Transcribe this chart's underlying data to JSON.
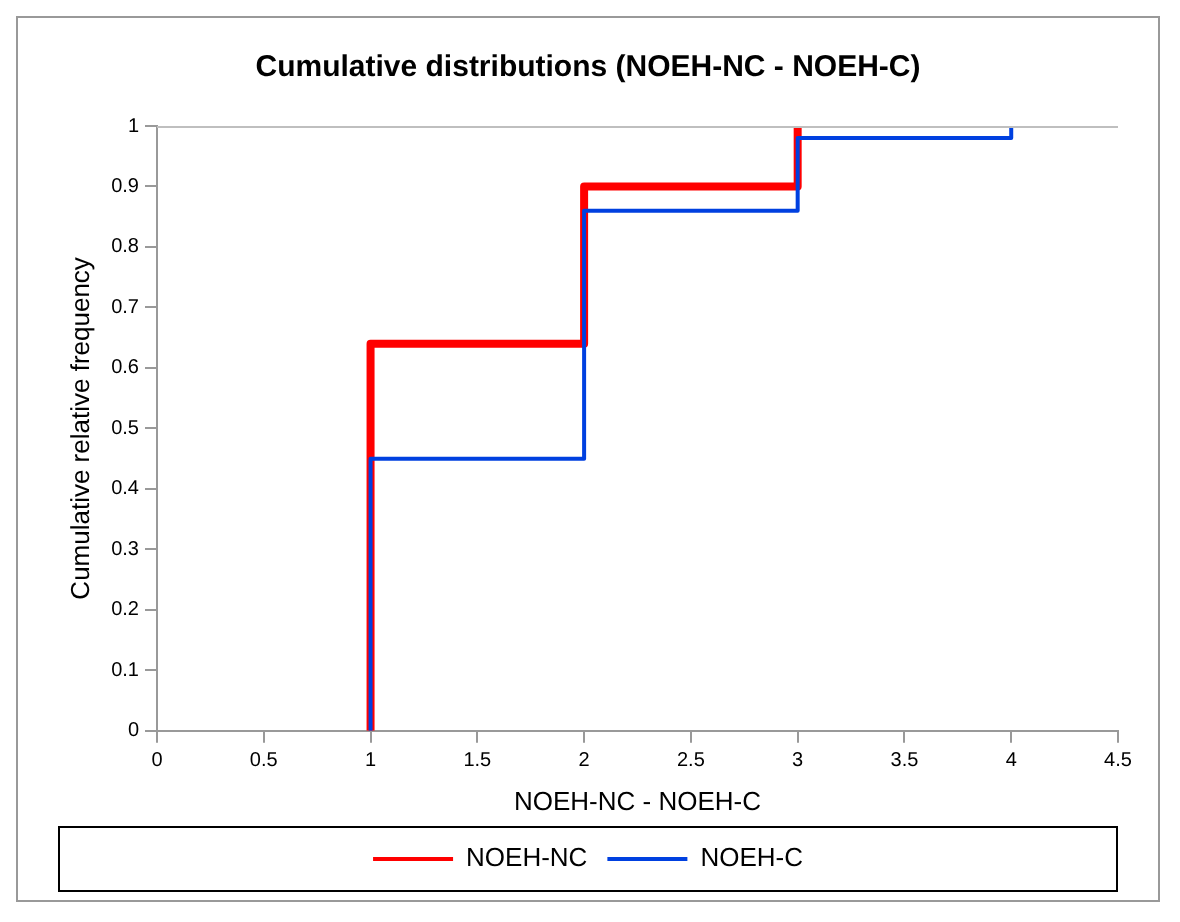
{
  "chart_data": {
    "type": "step",
    "title": "Cumulative distributions (NOEH-NC - NOEH-C)",
    "xlabel": "NOEH-NC - NOEH-C",
    "ylabel": "Cumulative relative frequency",
    "xlim": [
      0,
      4.5
    ],
    "xticks": [
      0,
      0.5,
      1,
      1.5,
      2,
      2.5,
      3,
      3.5,
      4,
      4.5
    ],
    "ylim": [
      0,
      1
    ],
    "yticks": [
      0,
      0.1,
      0.2,
      0.3,
      0.4,
      0.5,
      0.6,
      0.7,
      0.8,
      0.9,
      1
    ],
    "grid": false,
    "legend": "bottom",
    "marker": "none",
    "line_style": "solid",
    "series": [
      {
        "name": "NOEH-NC",
        "color": "#ff0000",
        "x": [
          1,
          1,
          2,
          3
        ],
        "values": [
          0,
          0.64,
          0.9,
          1
        ]
      },
      {
        "name": "NOEH-C",
        "color": "#0040e0",
        "x": [
          1,
          1,
          2,
          3,
          4
        ],
        "values": [
          0,
          0.45,
          0.86,
          0.98,
          1
        ]
      }
    ]
  }
}
